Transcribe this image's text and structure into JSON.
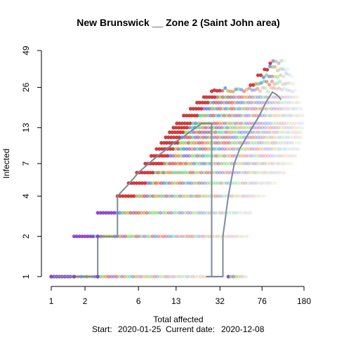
{
  "chart_data": {
    "type": "scatter",
    "title": "New Brunswick __ Zone 2 (Saint John area)",
    "xlabel": "Total affected",
    "ylabel": "Infected",
    "xscale": "log",
    "yscale": "log",
    "xlim": [
      1,
      180
    ],
    "ylim": [
      1,
      49
    ],
    "x_ticks": [
      1,
      2,
      6,
      13,
      32,
      76,
      180
    ],
    "y_ticks": [
      1,
      2,
      4,
      7,
      13,
      26,
      49
    ],
    "grid": false,
    "legend": "none",
    "footer": {
      "start_label": "Start:",
      "start_date": "2020-01-25",
      "current_label": "Current date:",
      "current_date": "2020-12-08"
    },
    "observed": {
      "color": "#7a8b9a",
      "x": [
        1,
        1.6,
        2.6,
        2.6,
        3.9,
        3.9,
        5.0,
        6.0,
        7.4,
        8.9,
        10.8,
        12.4,
        14.9,
        17.1,
        19.4,
        22.0,
        24.5,
        27.0,
        27.0,
        24.0,
        24.0,
        34,
        34,
        38,
        43,
        48,
        55,
        62,
        72,
        82,
        94,
        102,
        108,
        112
      ],
      "y": [
        1,
        1,
        1,
        2,
        2,
        4,
        5,
        6,
        7,
        8,
        9,
        10,
        11,
        12,
        13,
        14,
        14,
        14,
        1,
        1,
        1,
        1,
        2,
        4,
        7,
        9,
        11,
        13,
        16,
        20,
        24,
        23,
        22,
        21
      ]
    },
    "projection": {
      "description_colors": [
        "#cc3333",
        "#dd7722",
        "#77cc33",
        "#33cc77",
        "#3366dd",
        "#8844cc"
      ],
      "bands": [
        {
          "y": 1,
          "x_start": 1,
          "x_end": 32
        },
        {
          "y": 1,
          "x_start": 38,
          "x_end": 55
        },
        {
          "y": 2,
          "x_start": 1.6,
          "x_end": 56
        },
        {
          "y": 3,
          "x_start": 2.6,
          "x_end": 60
        },
        {
          "y": 4,
          "x_start": 3.9,
          "x_end": 80
        },
        {
          "y": 5,
          "x_start": 4.9,
          "x_end": 100
        },
        {
          "y": 6,
          "x_start": 5.8,
          "x_end": 120
        },
        {
          "y": 7,
          "x_start": 6.9,
          "x_end": 140
        },
        {
          "y": 8,
          "x_start": 7.8,
          "x_end": 150
        },
        {
          "y": 9,
          "x_start": 8.7,
          "x_end": 160
        },
        {
          "y": 10,
          "x_start": 9.6,
          "x_end": 165
        },
        {
          "y": 11,
          "x_start": 10.5,
          "x_end": 170
        },
        {
          "y": 12,
          "x_start": 11.4,
          "x_end": 170
        },
        {
          "y": 13,
          "x_start": 12.3,
          "x_end": 175
        },
        {
          "y": 14,
          "x_start": 13.2,
          "x_end": 175
        },
        {
          "y": 16,
          "x_start": 15.2,
          "x_end": 175
        },
        {
          "y": 18,
          "x_start": 17.5,
          "x_end": 170
        },
        {
          "y": 20,
          "x_start": 20,
          "x_end": 165
        },
        {
          "y": 22,
          "x_start": 23,
          "x_end": 160
        },
        {
          "y": 25,
          "x_start": 27,
          "x_end": 150
        },
        {
          "y": 28,
          "x_start": 60,
          "x_end": 145
        },
        {
          "y": 32,
          "x_start": 70,
          "x_end": 140
        },
        {
          "y": 36,
          "x_start": 80,
          "x_end": 130
        },
        {
          "y": 40,
          "x_start": 90,
          "x_end": 120
        }
      ]
    }
  }
}
